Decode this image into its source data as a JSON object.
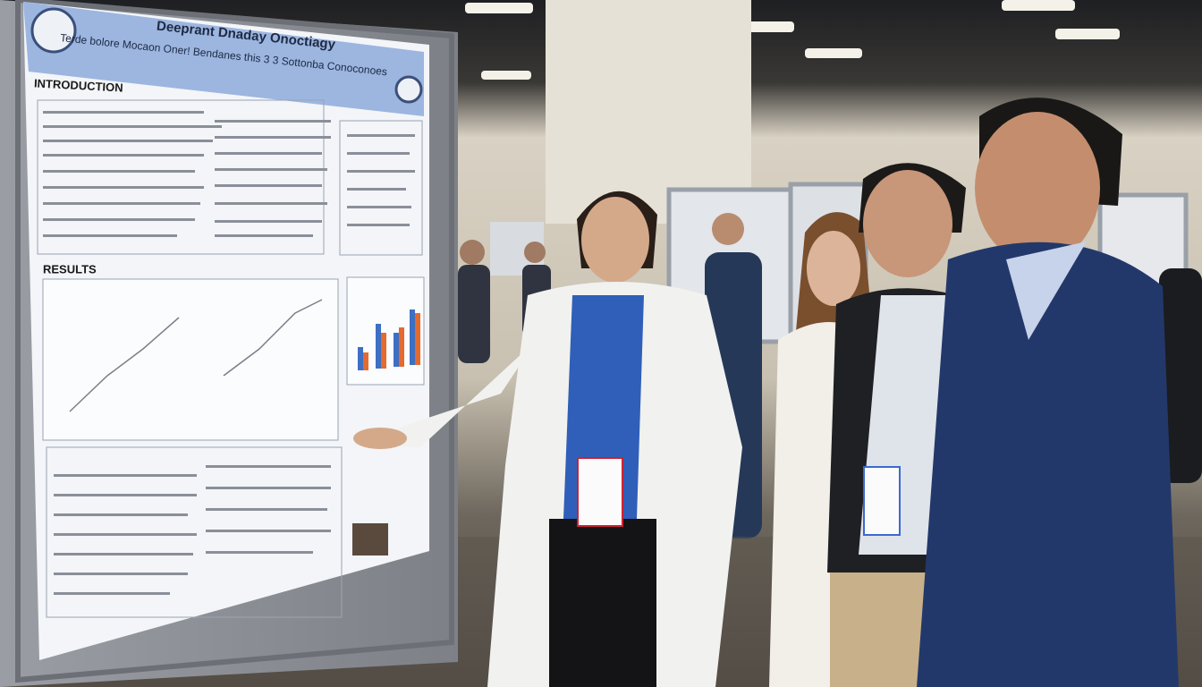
{
  "poster": {
    "title": "Deeprant Dnaday Onoctiagy",
    "subtitle": "Terde bolore Mocaon Oner! Bendanes this 3 3 Sottonba Conoconoes",
    "sections": [
      "INTRODUCTION",
      "RESULTS"
    ]
  }
}
